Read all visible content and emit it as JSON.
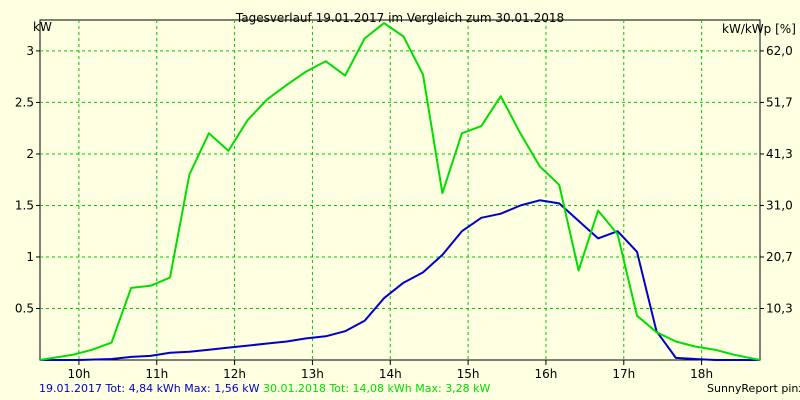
{
  "chart_data": {
    "type": "line",
    "title": "Tagesverlauf 19.01.2017 im Vergleich zum 30.01.2018",
    "ylabel_left": "kW",
    "ylabel_right": "kW/kWp [%]",
    "xlim": [
      9.5,
      18.75
    ],
    "ylim": [
      0,
      3.3
    ],
    "x_ticks": [
      10,
      11,
      12,
      13,
      14,
      15,
      16,
      17,
      18
    ],
    "x_tick_labels": [
      "10h",
      "11h",
      "12h",
      "13h",
      "14h",
      "15h",
      "16h",
      "17h",
      "18h"
    ],
    "y_ticks": [
      0.5,
      1,
      1.5,
      2,
      2.5,
      3
    ],
    "y_tick_labels": [
      "0.5",
      "1",
      "1.5",
      "2",
      "2.5",
      "3"
    ],
    "y2_ticks": [
      0.5,
      1.0,
      1.5,
      2.0,
      2.5,
      3.0
    ],
    "y2_tick_labels": [
      "10,3",
      "20,7",
      "31,0",
      "41,3",
      "51,7",
      "62,0"
    ],
    "grid": true,
    "background": "#ffffe1",
    "grid_color": "#00c800",
    "series": [
      {
        "name": "19.01.2017",
        "color": "#0000cc",
        "points": [
          [
            9.5,
            0
          ],
          [
            10.0,
            0.0
          ],
          [
            10.42,
            0.01
          ],
          [
            10.67,
            0.03
          ],
          [
            10.92,
            0.04
          ],
          [
            11.17,
            0.07
          ],
          [
            11.42,
            0.08
          ],
          [
            11.67,
            0.1
          ],
          [
            11.92,
            0.12
          ],
          [
            12.17,
            0.14
          ],
          [
            12.42,
            0.16
          ],
          [
            12.67,
            0.18
          ],
          [
            12.92,
            0.21
          ],
          [
            13.17,
            0.23
          ],
          [
            13.42,
            0.28
          ],
          [
            13.67,
            0.38
          ],
          [
            13.92,
            0.6
          ],
          [
            14.17,
            0.75
          ],
          [
            14.42,
            0.85
          ],
          [
            14.67,
            1.02
          ],
          [
            14.92,
            1.25
          ],
          [
            15.17,
            1.38
          ],
          [
            15.42,
            1.42
          ],
          [
            15.67,
            1.5
          ],
          [
            15.92,
            1.55
          ],
          [
            16.17,
            1.52
          ],
          [
            16.42,
            1.35
          ],
          [
            16.67,
            1.18
          ],
          [
            16.92,
            1.25
          ],
          [
            17.17,
            1.05
          ],
          [
            17.42,
            0.28
          ],
          [
            17.67,
            0.02
          ],
          [
            17.92,
            0.01
          ],
          [
            18.17,
            0.0
          ],
          [
            18.75,
            0.0
          ]
        ]
      },
      {
        "name": "30.01.2018",
        "color": "#00dd00",
        "points": [
          [
            9.5,
            0
          ],
          [
            9.92,
            0.05
          ],
          [
            10.17,
            0.1
          ],
          [
            10.42,
            0.17
          ],
          [
            10.67,
            0.7
          ],
          [
            10.92,
            0.72
          ],
          [
            11.17,
            0.8
          ],
          [
            11.42,
            1.8
          ],
          [
            11.67,
            2.2
          ],
          [
            11.92,
            2.03
          ],
          [
            12.17,
            2.33
          ],
          [
            12.42,
            2.53
          ],
          [
            12.67,
            2.67
          ],
          [
            12.92,
            2.8
          ],
          [
            13.17,
            2.9
          ],
          [
            13.42,
            2.76
          ],
          [
            13.67,
            3.12
          ],
          [
            13.92,
            3.27
          ],
          [
            14.17,
            3.14
          ],
          [
            14.42,
            2.77
          ],
          [
            14.67,
            1.62
          ],
          [
            14.92,
            2.2
          ],
          [
            15.17,
            2.27
          ],
          [
            15.42,
            2.56
          ],
          [
            15.67,
            2.2
          ],
          [
            15.92,
            1.88
          ],
          [
            16.17,
            1.7
          ],
          [
            16.42,
            0.87
          ],
          [
            16.67,
            1.45
          ],
          [
            16.92,
            1.22
          ],
          [
            17.17,
            0.43
          ],
          [
            17.42,
            0.27
          ],
          [
            17.67,
            0.18
          ],
          [
            17.92,
            0.13
          ],
          [
            18.17,
            0.1
          ],
          [
            18.42,
            0.05
          ],
          [
            18.75,
            0.0
          ]
        ]
      }
    ],
    "footer": {
      "series1_text": "19.01.2017 Tot: 4,84 kWh Max: 1,56 kW",
      "series2_text": "30.01.2018 Tot: 14,08 kWh Max: 3,28 kW",
      "credit": "SunnyReport pinxit"
    }
  }
}
